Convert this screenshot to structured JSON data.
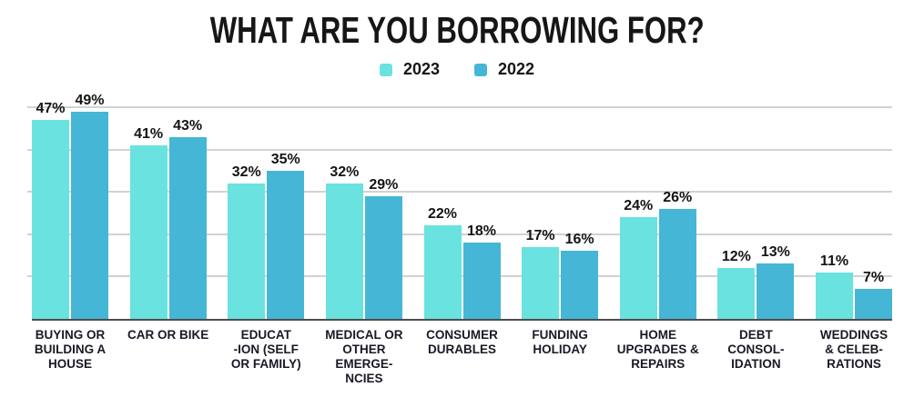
{
  "title": "WHAT ARE YOU BORROWING FOR?",
  "legend": [
    {
      "label": "2023",
      "color": "#6AE2DF"
    },
    {
      "label": "2022",
      "color": "#45B6D6"
    }
  ],
  "chart_data": {
    "type": "bar",
    "title": "WHAT ARE YOU BORROWING FOR?",
    "categories": [
      "BUYING OR BUILDING A HOUSE",
      "CAR OR BIKE",
      "EDUCAT-ION (SELF OR FAMILY)",
      "MEDICAL OR OTHER EMERGE-NCIES",
      "CONSUMER DURABLES",
      "FUNDING HOLIDAY",
      "HOME UPGRADES & REPAIRS",
      "DEBT CONSOL-IDATION",
      "WEDDINGS & CELEB-RATIONS"
    ],
    "category_display": [
      "BUYING OR\nBUILDING A\nHOUSE",
      "CAR OR BIKE",
      "EDUCAT\n-ION (SELF\nOR FAMILY)",
      "MEDICAL OR\nOTHER\nEMERGE-\nNCIES",
      "CONSUMER\nDURABLES",
      "FUNDING\nHOLIDAY",
      "HOME\nUPGRADES &\nREPAIRS",
      "DEBT\nCONSOL-\nIDATION",
      "WEDDINGS\n& CELEB-\nRATIONS"
    ],
    "series": [
      {
        "name": "2023",
        "color": "#6AE2DF",
        "values": [
          47,
          41,
          32,
          32,
          22,
          17,
          24,
          12,
          11
        ]
      },
      {
        "name": "2022",
        "color": "#45B6D6",
        "values": [
          49,
          43,
          35,
          29,
          18,
          16,
          26,
          13,
          7
        ]
      }
    ],
    "xlabel": "",
    "ylabel": "",
    "ylim": [
      0,
      50
    ],
    "gridline_step": 10,
    "grid": "horizontal",
    "legend_position": "top",
    "value_label_format": "{v}%"
  },
  "colors": {
    "gridline": "#A6A6A6",
    "axis_line": "#4D4D4D",
    "text": "#161616",
    "background": "#FFFFFF"
  }
}
